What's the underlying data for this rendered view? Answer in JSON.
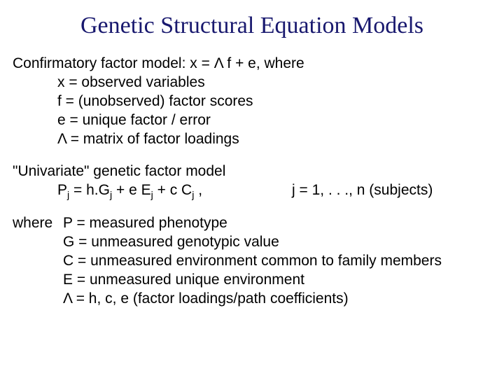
{
  "title": "Genetic Structural Equation Models",
  "colors": {
    "title": "#18186e",
    "body": "#000000",
    "background": "#ffffff"
  },
  "typography": {
    "title_family": "Times New Roman",
    "title_size_pt": 34,
    "body_family": "Verdana",
    "body_size_pt": 21
  },
  "cfm": {
    "heading_prefix": "Confirmatory factor model: x = ",
    "lambda": "Λ",
    "heading_suffix": " f + e, where",
    "defs": {
      "x": "x = observed variables",
      "f": "f = (unobserved) factor scores",
      "e": "e = unique factor / error",
      "lambda": "Λ = matrix of factor loadings"
    }
  },
  "ugfm": {
    "heading": "\"Univariate\" genetic factor model",
    "eq_parts": {
      "P": "P",
      "j1": "j",
      "eq": " = h.G",
      "j2": "j",
      "plus_e": " + e E",
      "j3": "j",
      "plus_c": " + c C",
      "j4": "j",
      "tail": " ,",
      "range": "j = 1, . . ., n (subjects)"
    }
  },
  "where": {
    "label": "where",
    "P": "P = measured phenotype",
    "G": "G = unmeasured genotypic value",
    "C": "C = unmeasured environment common to family members",
    "E": "E = unmeasured unique environment",
    "lambda": "Λ = h, c, e (factor loadings/path coefficients)"
  }
}
